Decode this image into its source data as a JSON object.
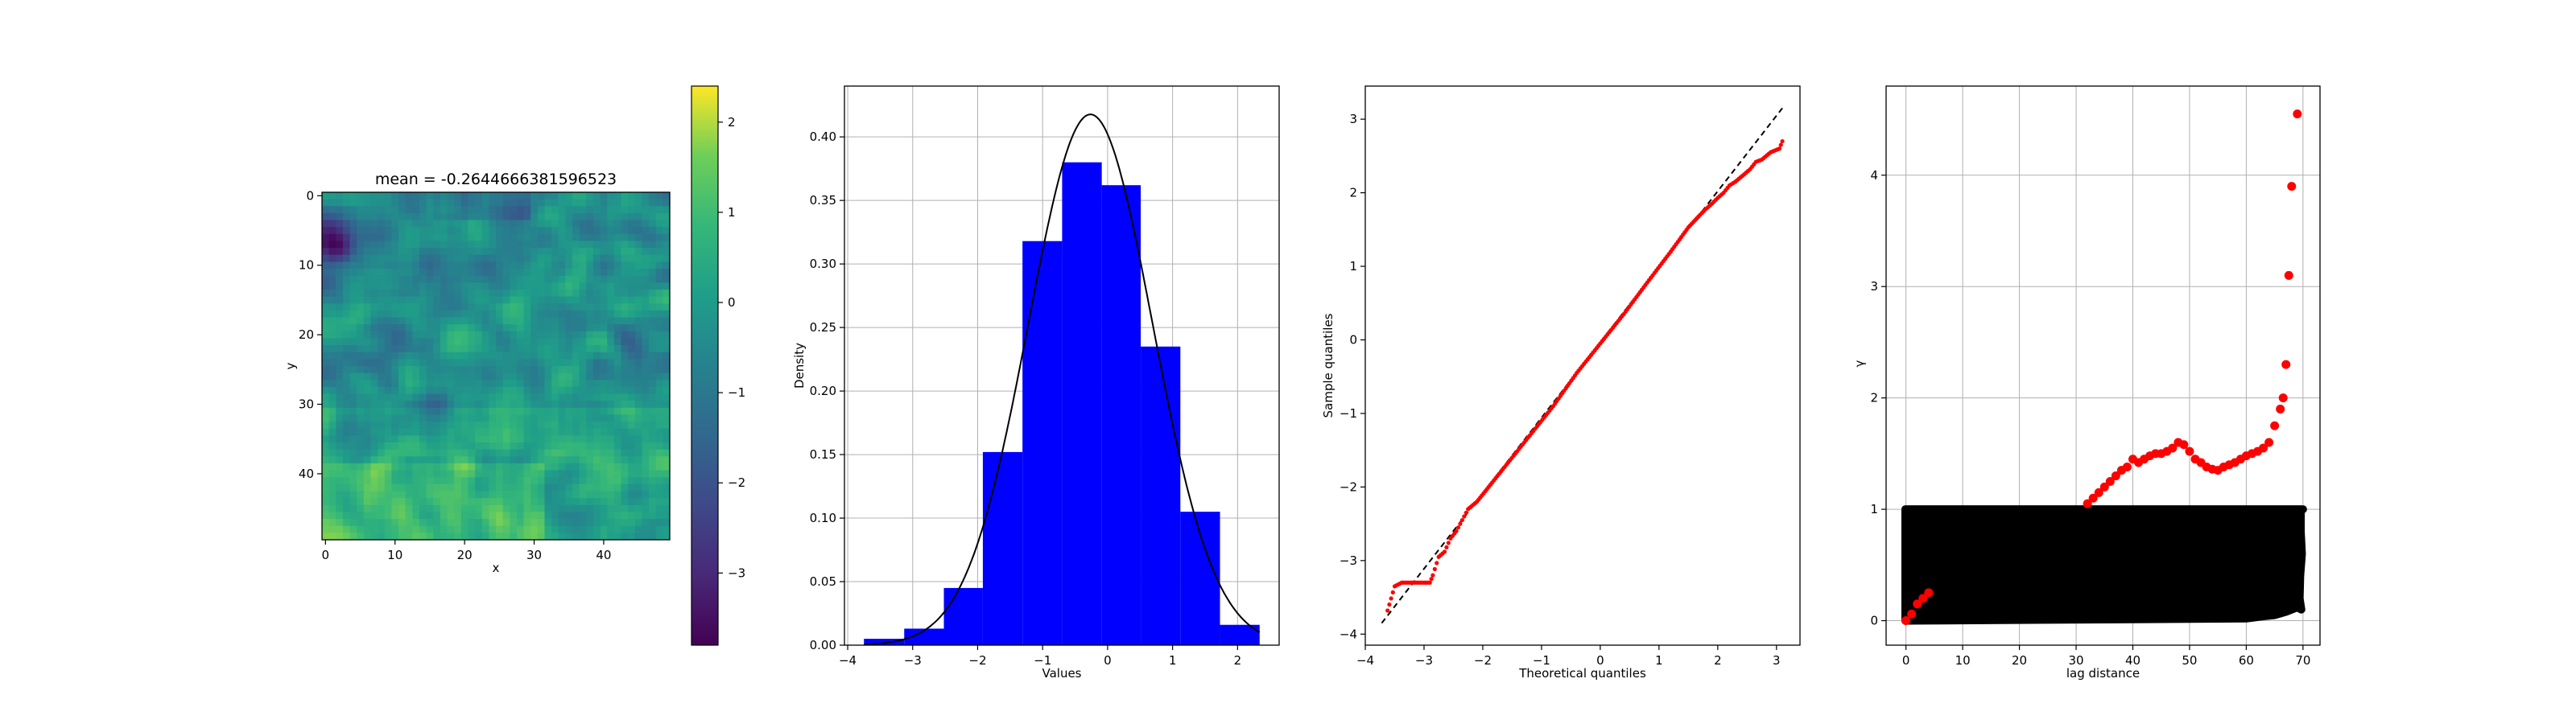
{
  "chart_data": [
    {
      "type": "heatmap",
      "title": "mean = -0.2644666381596523",
      "xlabel": "x",
      "ylabel": "y",
      "grid_size": [
        50,
        50
      ],
      "xlim": [
        -0.5,
        49.5
      ],
      "ylim": [
        49.5,
        -0.5
      ],
      "x_ticks": [
        0,
        10,
        20,
        30,
        40
      ],
      "y_ticks": [
        0,
        10,
        20,
        30,
        40
      ],
      "colormap": "viridis",
      "colorbar": {
        "range": [
          -3.8,
          2.4
        ],
        "ticks": [
          -3,
          -2,
          -1,
          0,
          1,
          2
        ],
        "tick_labels": [
          "−3",
          "−2",
          "−1",
          "0",
          "1",
          "2"
        ]
      },
      "field_description": "spatially correlated random field; darkest (lowest) values near upper-left (x≈0–4, y≈5–10); brightest (highest) values along bottom rows y≈40–49, x≈5–30"
    },
    {
      "type": "bar",
      "subtype": "histogram_with_density_curve",
      "xlabel": "Values",
      "ylabel": "Density",
      "bar_color": "#0000ff",
      "bins": [
        {
          "left": -3.75,
          "right": -3.13,
          "density": 0.005
        },
        {
          "left": -3.13,
          "right": -2.52,
          "density": 0.013
        },
        {
          "left": -2.52,
          "right": -1.92,
          "density": 0.045
        },
        {
          "left": -1.92,
          "right": -1.31,
          "density": 0.152
        },
        {
          "left": -1.31,
          "right": -0.7,
          "density": 0.318
        },
        {
          "left": -0.7,
          "right": -0.09,
          "density": 0.38
        },
        {
          "left": -0.09,
          "right": 0.51,
          "density": 0.362
        },
        {
          "left": 0.51,
          "right": 1.12,
          "density": 0.235
        },
        {
          "left": 1.12,
          "right": 1.73,
          "density": 0.105
        },
        {
          "left": 1.73,
          "right": 2.34,
          "density": 0.016
        }
      ],
      "density_curve": {
        "mean": -0.264,
        "std": 0.955,
        "color": "#000000"
      },
      "xlim": [
        -4.05,
        2.64
      ],
      "ylim": [
        0,
        0.44
      ],
      "x_ticks": [
        -4,
        -3,
        -2,
        -1,
        0,
        1,
        2
      ],
      "x_tick_labels": [
        "−4",
        "−3",
        "−2",
        "−1",
        "0",
        "1",
        "2"
      ],
      "y_ticks": [
        0.0,
        0.05,
        0.1,
        0.15,
        0.2,
        0.25,
        0.3,
        0.35,
        0.4
      ],
      "y_tick_labels": [
        "0.00",
        "0.05",
        "0.10",
        "0.15",
        "0.20",
        "0.25",
        "0.30",
        "0.35",
        "0.40"
      ],
      "grid": true
    },
    {
      "type": "scatter",
      "subtype": "qq_plot",
      "xlabel": "Theoretical quantiles",
      "ylabel": "Sample quantiles",
      "point_color": "#ff0000",
      "reference_line": {
        "x": [
          -3.72,
          3.1
        ],
        "y": [
          -3.85,
          3.15
        ],
        "style": "dashed",
        "color": "#000000"
      },
      "points": [
        [
          -3.62,
          -3.68
        ],
        [
          -3.5,
          -3.35
        ],
        [
          -3.38,
          -3.3
        ],
        [
          -2.9,
          -3.3
        ],
        [
          -2.85,
          -3.2
        ],
        [
          -2.75,
          -2.95
        ],
        [
          -2.65,
          -2.88
        ],
        [
          -2.55,
          -2.7
        ],
        [
          -2.45,
          -2.6
        ],
        [
          -2.35,
          -2.45
        ],
        [
          -2.25,
          -2.3
        ],
        [
          -2.1,
          -2.2
        ],
        [
          -1.9,
          -2.0
        ],
        [
          -1.6,
          -1.7
        ],
        [
          -1.2,
          -1.3
        ],
        [
          -0.8,
          -0.9
        ],
        [
          -0.4,
          -0.45
        ],
        [
          0.0,
          -0.05
        ],
        [
          0.4,
          0.35
        ],
        [
          0.8,
          0.78
        ],
        [
          1.2,
          1.2
        ],
        [
          1.5,
          1.53
        ],
        [
          1.7,
          1.7
        ],
        [
          1.8,
          1.78
        ],
        [
          1.9,
          1.85
        ],
        [
          2.0,
          1.93
        ],
        [
          2.1,
          2.0
        ],
        [
          2.2,
          2.1
        ],
        [
          2.3,
          2.15
        ],
        [
          2.45,
          2.25
        ],
        [
          2.55,
          2.32
        ],
        [
          2.65,
          2.42
        ],
        [
          2.75,
          2.45
        ],
        [
          2.9,
          2.55
        ],
        [
          3.05,
          2.6
        ],
        [
          3.1,
          2.7
        ]
      ],
      "xlim": [
        -4.0,
        3.4
      ],
      "ylim": [
        -4.15,
        3.45
      ],
      "x_ticks": [
        -4,
        -3,
        -2,
        -1,
        0,
        1,
        2,
        3
      ],
      "x_tick_labels": [
        "−4",
        "−3",
        "−2",
        "−1",
        "0",
        "1",
        "2",
        "3"
      ],
      "y_ticks": [
        -4,
        -3,
        -2,
        -1,
        0,
        1,
        2,
        3
      ],
      "y_tick_labels": [
        "−4",
        "−3",
        "−2",
        "−1",
        "0",
        "1",
        "2",
        "3"
      ],
      "grid": false
    },
    {
      "type": "scatter",
      "subtype": "semivariogram_cloud",
      "xlabel": "lag distance",
      "ylabel": "γ",
      "cloud_color": "#000000",
      "cloud_band": {
        "x_min": -0.1,
        "x_max": 70,
        "y_min": 0.0,
        "y_max": 1.0
      },
      "cloud_bottom_edge": [
        [
          60,
          0.02
        ],
        [
          63,
          0.04
        ],
        [
          65,
          0.05
        ],
        [
          67,
          0.08
        ],
        [
          69,
          0.12
        ]
      ],
      "cloud_right_edge": [
        [
          1.0,
          69.6
        ],
        [
          0.8,
          69.6
        ],
        [
          0.6,
          69.8
        ],
        [
          0.4,
          69.5
        ],
        [
          0.2,
          69.4
        ],
        [
          0.1,
          69.7
        ]
      ],
      "red_points": [
        [
          0,
          0.0
        ],
        [
          1,
          0.06
        ],
        [
          2,
          0.15
        ],
        [
          3,
          0.2
        ],
        [
          4,
          0.25
        ],
        [
          32,
          1.05
        ],
        [
          33,
          1.1
        ],
        [
          34,
          1.15
        ],
        [
          35,
          1.2
        ],
        [
          36,
          1.25
        ],
        [
          37,
          1.3
        ],
        [
          38,
          1.35
        ],
        [
          39,
          1.38
        ],
        [
          40,
          1.45
        ],
        [
          41,
          1.42
        ],
        [
          42,
          1.45
        ],
        [
          43,
          1.48
        ],
        [
          44,
          1.5
        ],
        [
          45,
          1.5
        ],
        [
          46,
          1.52
        ],
        [
          47,
          1.55
        ],
        [
          48,
          1.6
        ],
        [
          49,
          1.58
        ],
        [
          50,
          1.52
        ],
        [
          51,
          1.45
        ],
        [
          52,
          1.42
        ],
        [
          53,
          1.38
        ],
        [
          54,
          1.36
        ],
        [
          55,
          1.35
        ],
        [
          56,
          1.38
        ],
        [
          57,
          1.4
        ],
        [
          58,
          1.42
        ],
        [
          59,
          1.45
        ],
        [
          60,
          1.48
        ],
        [
          61,
          1.5
        ],
        [
          62,
          1.52
        ],
        [
          63,
          1.55
        ],
        [
          64,
          1.6
        ],
        [
          65,
          1.75
        ],
        [
          66,
          1.9
        ],
        [
          66.5,
          2.0
        ],
        [
          67,
          2.3
        ],
        [
          67.5,
          3.1
        ],
        [
          68,
          3.9
        ],
        [
          69,
          4.55
        ]
      ],
      "xlim": [
        -3.5,
        73.0
      ],
      "ylim": [
        -0.22,
        4.8
      ],
      "x_ticks": [
        0,
        10,
        20,
        30,
        40,
        50,
        60,
        70
      ],
      "y_ticks": [
        0,
        1,
        2,
        3,
        4
      ],
      "grid": true
    }
  ]
}
